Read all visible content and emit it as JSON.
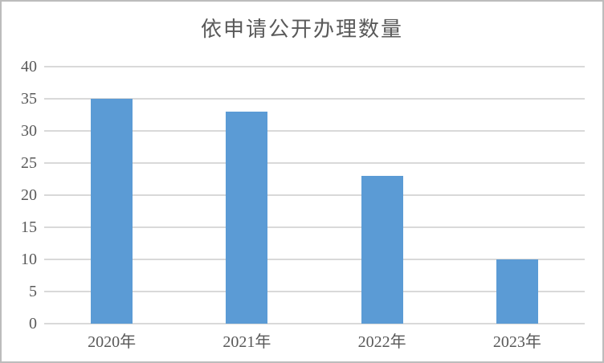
{
  "chart": {
    "title": "依申请公开办理数量",
    "colors": {
      "bar": "#5b9bd5",
      "gridline": "#d9d9d9",
      "text": "#595959",
      "frame": "#bcbcbc",
      "background": "#ffffff"
    }
  },
  "chart_data": {
    "type": "bar",
    "title": "依申请公开办理数量",
    "categories": [
      "2020年",
      "2021年",
      "2022年",
      "2023年"
    ],
    "values": [
      35,
      33,
      23,
      10
    ],
    "xlabel": "",
    "ylabel": "",
    "ylim": [
      0,
      40
    ],
    "yticks": [
      0,
      5,
      10,
      15,
      20,
      25,
      30,
      35,
      40
    ],
    "grid": true,
    "legend": false
  }
}
